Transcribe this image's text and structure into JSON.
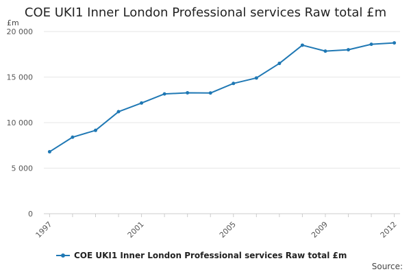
{
  "title": "COE UKI1 Inner London Professional services Raw total £m",
  "source_label": "Source:",
  "colors": {
    "series": "#1f78b4",
    "grid": "#e6e6e6",
    "axis": "#cccccc"
  },
  "chart_data": {
    "type": "line",
    "title": "COE UKI1 Inner London Professional services Raw total £m",
    "unit_label": "£m",
    "xlabel": "",
    "ylabel": "",
    "x": [
      1997,
      1998,
      1999,
      2000,
      2001,
      2002,
      2003,
      2004,
      2005,
      2006,
      2007,
      2008,
      2009,
      2010,
      2011,
      2012
    ],
    "x_ticks": [
      "1997",
      "2001",
      "2005",
      "2009",
      "2012"
    ],
    "y_ticks": [
      "0",
      "5 000",
      "10 000",
      "15 000",
      "20 000"
    ],
    "ylim": [
      0,
      20000
    ],
    "grid": true,
    "legend_position": "bottom",
    "series": [
      {
        "name": "COE UKI1 Inner London Professional services Raw total £m",
        "values": [
          6800,
          8400,
          9150,
          11200,
          12150,
          13150,
          13270,
          13250,
          14300,
          14900,
          16500,
          18500,
          17850,
          18000,
          18600,
          18750
        ]
      }
    ]
  }
}
